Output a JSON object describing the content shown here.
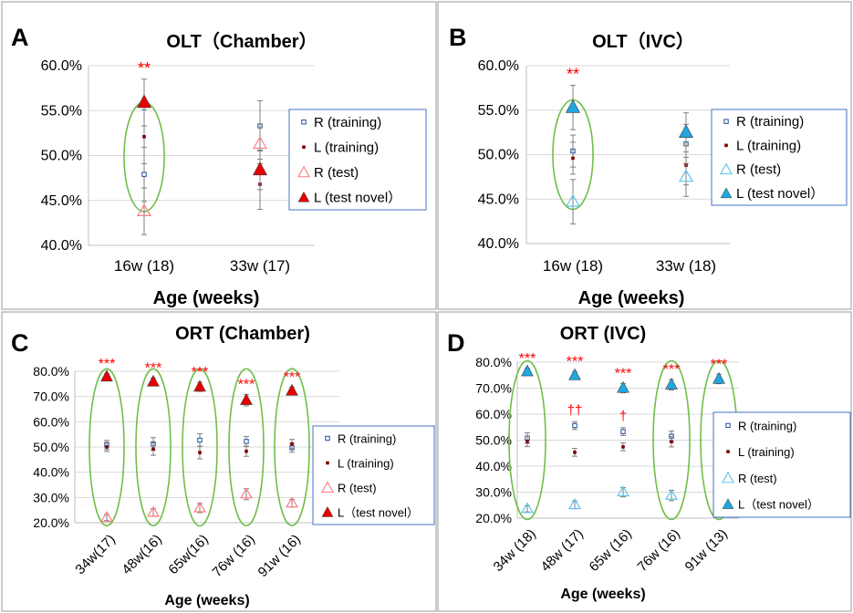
{
  "chart_data": [
    {
      "panel_letter": "A",
      "title": "OLT（Chamber）",
      "type": "scatter",
      "xlabel": "Age (weeks)",
      "ylabel": "",
      "ylim": [
        0.4,
        0.6
      ],
      "ytick_values": [
        0.4,
        0.45,
        0.5,
        0.55,
        0.6
      ],
      "ytick_labels": [
        "40.0%",
        "45.0%",
        "50.0%",
        "55.0%",
        "60.0%"
      ],
      "grid": "horizontal",
      "legend_position": "right",
      "categories": [
        "16w (18)",
        "33w (17)"
      ],
      "series": [
        {
          "name": "R (training)",
          "values": [
            0.479,
            0.533
          ],
          "errors": [
            0.03,
            0.028
          ]
        },
        {
          "name": "L (training)",
          "values": [
            0.521,
            0.468
          ],
          "errors": [
            0.03,
            0.028
          ]
        },
        {
          "name": "R (test)",
          "values": [
            0.438,
            0.513
          ],
          "errors": [
            0.026,
            0.022
          ]
        },
        {
          "name": "L (test novel）",
          "values": [
            0.559,
            0.484
          ],
          "errors": [
            0.026,
            0.022
          ]
        }
      ],
      "annotations": [
        {
          "category": 0,
          "text": "**"
        }
      ],
      "highlight_ellipses": [
        0
      ]
    },
    {
      "panel_letter": "B",
      "title": "OLT（IVC）",
      "type": "scatter",
      "xlabel": "Age (weeks)",
      "ylabel": "",
      "ylim": [
        0.4,
        0.6
      ],
      "ytick_values": [
        0.4,
        0.45,
        0.5,
        0.55,
        0.6
      ],
      "ytick_labels": [
        "40.0%",
        "45.0%",
        "50.0%",
        "55.0%",
        "60.0%"
      ],
      "grid": "horizontal",
      "legend_position": "right",
      "categories": [
        "16w (18)",
        "33w (18)"
      ],
      "series": [
        {
          "name": "R (training)",
          "values": [
            0.504,
            0.512
          ],
          "errors": [
            0.018,
            0.022
          ]
        },
        {
          "name": "L (training)",
          "values": [
            0.496,
            0.488
          ],
          "errors": [
            0.018,
            0.022
          ]
        },
        {
          "name": "R (test)",
          "values": [
            0.447,
            0.475
          ],
          "errors": [
            0.025,
            0.022
          ]
        },
        {
          "name": "L (test novel）",
          "values": [
            0.553,
            0.525
          ],
          "errors": [
            0.025,
            0.022
          ]
        }
      ],
      "annotations": [
        {
          "category": 0,
          "text": "**"
        }
      ],
      "highlight_ellipses": [
        0
      ]
    },
    {
      "panel_letter": "C",
      "title": "ORT (Chamber)",
      "type": "scatter",
      "xlabel": "Age (weeks)",
      "ylabel": "",
      "ylim": [
        0.2,
        0.8
      ],
      "ytick_values": [
        0.2,
        0.3,
        0.4,
        0.5,
        0.6,
        0.7,
        0.8
      ],
      "ytick_labels": [
        "20.0%",
        "30.0%",
        "40.0%",
        "50.0%",
        "60.0%",
        "70.0%",
        "80.0%"
      ],
      "grid": "horizontal",
      "legend_position": "right",
      "categories": [
        "34w(17)",
        "48w(16)",
        "65w(16)",
        "76w (16)",
        "91w (16)"
      ],
      "series": [
        {
          "name": "R (training)",
          "values": [
            0.508,
            0.512,
            0.527,
            0.522,
            0.497
          ],
          "errors": [
            0.018,
            0.025,
            0.025,
            0.02,
            0.018
          ]
        },
        {
          "name": "L (training)",
          "values": [
            0.5,
            0.492,
            0.478,
            0.483,
            0.512
          ],
          "errors": [
            0.018,
            0.025,
            0.025,
            0.02,
            0.018
          ]
        },
        {
          "name": "R (test)",
          "values": [
            0.22,
            0.24,
            0.258,
            0.313,
            0.277
          ],
          "errors": [
            0.012,
            0.015,
            0.018,
            0.022,
            0.015
          ]
        },
        {
          "name": "L（test novel）",
          "values": [
            0.778,
            0.758,
            0.738,
            0.685,
            0.722
          ],
          "errors": [
            0.012,
            0.015,
            0.018,
            0.022,
            0.015
          ]
        }
      ],
      "annotations": [
        {
          "category": 0,
          "text": "***"
        },
        {
          "category": 1,
          "text": "***"
        },
        {
          "category": 2,
          "text": "***"
        },
        {
          "category": 3,
          "text": "***"
        },
        {
          "category": 4,
          "text": "***"
        }
      ],
      "highlight_ellipses": [
        0,
        1,
        2,
        3,
        4
      ]
    },
    {
      "panel_letter": "D",
      "title": "ORT (IVC)",
      "type": "scatter",
      "xlabel": "Age (weeks)",
      "ylabel": "",
      "ylim": [
        0.2,
        0.8
      ],
      "ytick_values": [
        0.2,
        0.3,
        0.4,
        0.5,
        0.6,
        0.7,
        0.8
      ],
      "ytick_labels": [
        "20.0%",
        "30.0%",
        "40.0%",
        "50.0%",
        "60.0%",
        "70.0%",
        "80.0%"
      ],
      "grid": "horizontal",
      "legend_position": "right",
      "categories": [
        "34w (18)",
        "48w (17)",
        "65w (16)",
        "76w (16)",
        "91w (13)"
      ],
      "series": [
        {
          "name": "R (training)",
          "values": [
            0.508,
            0.556,
            0.533,
            0.515,
            0.51
          ],
          "errors": [
            0.02,
            0.015,
            0.015,
            0.02,
            0.018
          ]
        },
        {
          "name": "L (training)",
          "values": [
            0.495,
            0.453,
            0.474,
            0.494,
            0.5
          ],
          "errors": [
            0.02,
            0.015,
            0.015,
            0.02,
            0.018
          ]
        },
        {
          "name": "R (test)",
          "values": [
            0.236,
            0.251,
            0.3,
            0.287,
            0.265
          ],
          "errors": [
            0.012,
            0.015,
            0.018,
            0.02,
            0.018
          ]
        },
        {
          "name": "L（test novel）",
          "values": [
            0.764,
            0.749,
            0.7,
            0.713,
            0.735
          ],
          "errors": [
            0.012,
            0.015,
            0.018,
            0.02,
            0.018
          ]
        }
      ],
      "annotations": [
        {
          "category": 0,
          "text": "***"
        },
        {
          "category": 1,
          "text": "***"
        },
        {
          "category": 2,
          "text": "***"
        },
        {
          "category": 3,
          "text": "***"
        },
        {
          "category": 4,
          "text": "***"
        }
      ],
      "extra_annotations": [
        {
          "category": 1,
          "text": "††"
        },
        {
          "category": 2,
          "text": "†"
        }
      ],
      "highlight_ellipses": [
        0,
        3,
        4
      ]
    }
  ],
  "colors": {
    "significance": "#ff0000",
    "ellipse": "#6fbf4a",
    "gridline": "#d9d9d9",
    "legend_border": "#4472c4",
    "panel_border": "#999999",
    "training_R": "#1f4e9c",
    "training_L": "#7f0000",
    "chamber_test": "#e60000",
    "chamber_test_open": "#ff7c80",
    "ivc_test": "#1fa7e0",
    "ivc_test_open": "#5bc4ef"
  }
}
